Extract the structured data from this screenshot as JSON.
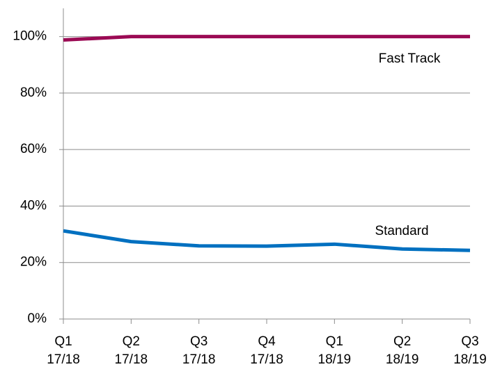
{
  "chart_data": {
    "type": "line",
    "categories": [
      "Q1 17/18",
      "Q2 17/18",
      "Q3 17/18",
      "Q4 17/18",
      "Q1 18/19",
      "Q2 18/19",
      "Q3 18/19"
    ],
    "series": [
      {
        "name": "Fast Track",
        "color": "#9b0a54",
        "values": [
          98.8,
          100,
          100,
          100,
          100,
          100,
          100
        ]
      },
      {
        "name": "Standard",
        "color": "#0070c0",
        "values": [
          31.2,
          27.4,
          25.9,
          25.8,
          26.5,
          24.8,
          24.3
        ]
      }
    ],
    "ylim": [
      0,
      110
    ],
    "yticks": [
      {
        "value": 0,
        "label": "0%"
      },
      {
        "value": 20,
        "label": "20%"
      },
      {
        "value": 40,
        "label": "40%"
      },
      {
        "value": 60,
        "label": "60%"
      },
      {
        "value": 80,
        "label": "80%"
      },
      {
        "value": 100,
        "label": "100%"
      }
    ],
    "grid": true
  }
}
